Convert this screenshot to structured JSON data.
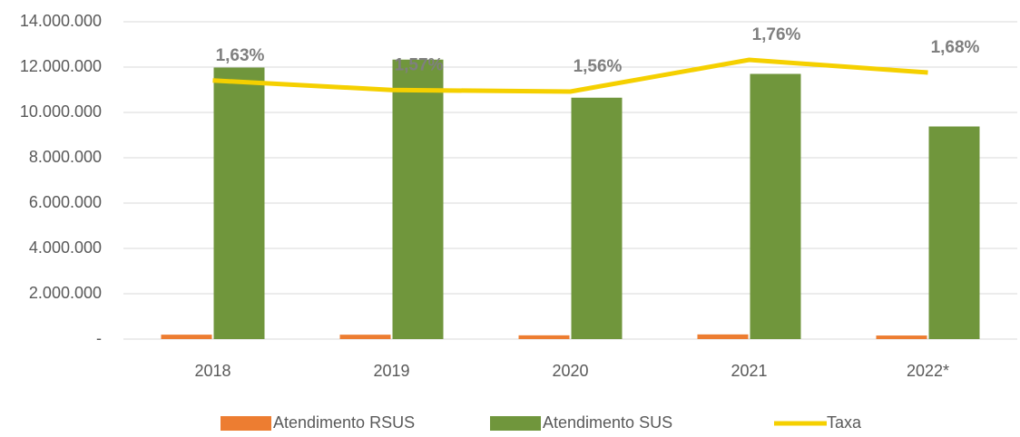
{
  "chart_data": {
    "type": "bar_line",
    "categories": [
      "2018",
      "2019",
      "2020",
      "2021",
      "2022*"
    ],
    "series": [
      {
        "name": "Atendimento RSUS",
        "color": "#ed7d31",
        "type": "bar",
        "values": [
          195000,
          193500,
          166000,
          206000,
          157500
        ]
      },
      {
        "name": "Atendimento SUS",
        "color": "#70963c",
        "type": "bar",
        "values": [
          11980000,
          12330000,
          10650000,
          11700000,
          9380000
        ]
      },
      {
        "name": "Taxa",
        "color": "#f5d000",
        "type": "line",
        "axis": "y2",
        "values": [
          1.63,
          1.57,
          1.56,
          1.76,
          1.68
        ],
        "value_labels": [
          "1,63%",
          "1,57%",
          "1,56%",
          "1,76%",
          "1,68%"
        ]
      }
    ],
    "ylim": [
      0,
      14000000
    ],
    "yticks": [
      {
        "value": 0,
        "label": "-"
      },
      {
        "value": 2000000,
        "label": "2.000.000"
      },
      {
        "value": 4000000,
        "label": "4.000.000"
      },
      {
        "value": 6000000,
        "label": "6.000.000"
      },
      {
        "value": 8000000,
        "label": "8.000.000"
      },
      {
        "value": 10000000,
        "label": "10.000.000"
      },
      {
        "value": 12000000,
        "label": "12.000.000"
      },
      {
        "value": 14000000,
        "label": "14.000.000"
      }
    ],
    "y2lim": [
      0,
      2
    ],
    "grid": true
  }
}
